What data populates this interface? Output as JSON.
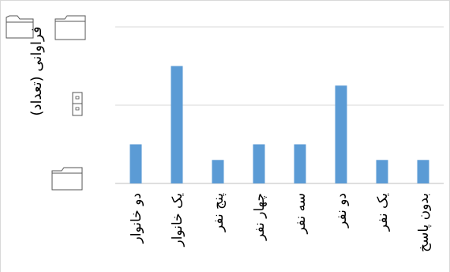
{
  "chart_data": {
    "type": "bar",
    "title": "",
    "xlabel": "",
    "ylabel": "فراوانی (تعداد)",
    "categories": [
      "دو خانوار",
      "یک خانوار",
      "پنج نفر",
      "چهار نفر",
      "سه نفر",
      "دو نفر",
      "یک نفر",
      "بدون پاسخ"
    ],
    "values": [
      1.0,
      3.0,
      0.6,
      1.0,
      1.0,
      2.5,
      0.6,
      0.6
    ],
    "ylim": [
      0,
      5
    ],
    "grid": true,
    "bar_color": "#5b9bd5",
    "gridline_color": "#d9d9d9",
    "icons": [
      "folder-icon",
      "folder-icon",
      "cabinet-icon",
      "folder-icon"
    ]
  }
}
